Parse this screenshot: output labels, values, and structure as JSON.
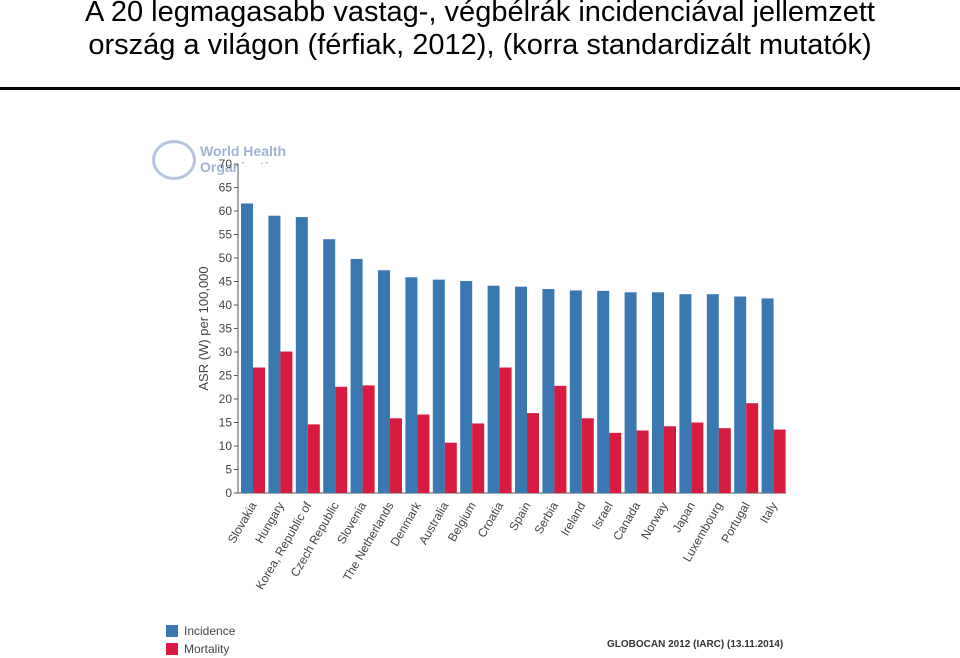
{
  "slide": {
    "title_line1": "A 20 legmagasabb vastag-, végbélrák incidenciával jellemzett",
    "title_line2": "ország a világon (férfiak, 2012), (korra standardizált mutatók)"
  },
  "watermark": {
    "org_name": "World Health Organization",
    "icon": "who-emblem-icon"
  },
  "footer": {
    "credit": "GLOBOCAN 2012 (IARC) (13.11.2014)"
  },
  "colors": {
    "incidence": "#3a78b1",
    "mortality": "#d81c3f"
  },
  "chart_data": {
    "type": "bar",
    "ylabel": "ASR (W) per 100,000",
    "ylim": [
      0,
      70
    ],
    "yticks": [
      0,
      5,
      10,
      15,
      20,
      25,
      30,
      35,
      40,
      45,
      50,
      55,
      60,
      65,
      70
    ],
    "grid": false,
    "legend_placement": "bottom-left",
    "categories": [
      "Slovakia",
      "Hungary",
      "Korea, Republic of",
      "Czech Republic",
      "Slovenia",
      "The Netherlands",
      "Denmark",
      "Australia",
      "Belgium",
      "Croatia",
      "Spain",
      "Serbia",
      "Ireland",
      "Israel",
      "Canada",
      "Norway",
      "Japan",
      "Luxembourg",
      "Portugal",
      "Italy"
    ],
    "series": [
      {
        "name": "Incidence",
        "values": [
          61.6,
          59.0,
          58.7,
          54.0,
          49.8,
          47.4,
          45.9,
          45.4,
          45.1,
          44.1,
          43.9,
          43.4,
          43.1,
          43.0,
          42.7,
          42.7,
          42.3,
          42.3,
          41.8,
          41.4
        ]
      },
      {
        "name": "Mortality",
        "values": [
          26.7,
          30.1,
          14.6,
          22.6,
          22.9,
          15.9,
          16.7,
          10.7,
          14.8,
          26.7,
          17.0,
          22.8,
          15.9,
          12.8,
          13.3,
          14.2,
          15.0,
          13.8,
          19.1,
          13.5
        ]
      }
    ]
  }
}
